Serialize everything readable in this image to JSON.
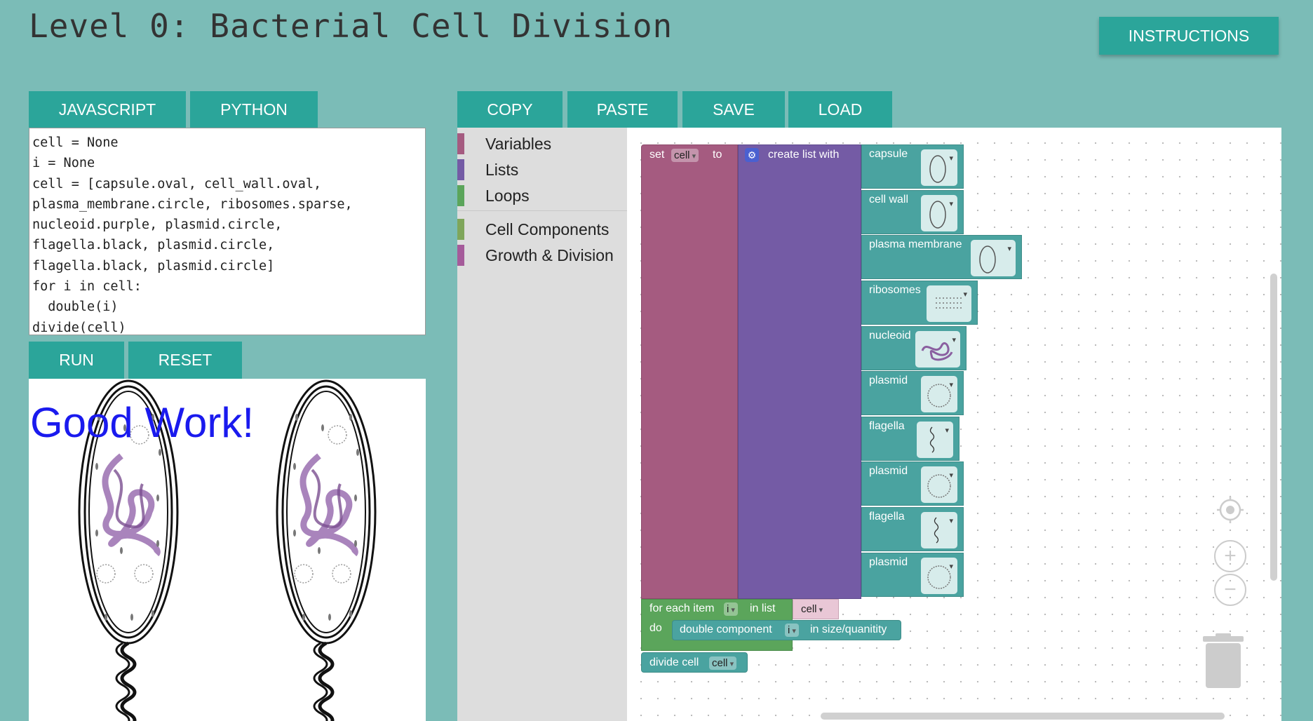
{
  "page": {
    "title": "Level 0: Bacterial Cell Division"
  },
  "header": {
    "instructions_label": "INSTRUCTIONS"
  },
  "language_tabs": {
    "javascript": "JAVASCRIPT",
    "python": "PYTHON"
  },
  "code": {
    "lines": [
      "cell = None",
      "i = None",
      "cell = [capsule.oval, cell_wall.oval,",
      "plasma_membrane.circle, ribosomes.sparse,",
      "nucleoid.purple, plasmid.circle,",
      "flagella.black, plasmid.circle,",
      "flagella.black, plasmid.circle]",
      "for i in cell:",
      "  double(i)",
      "divide(cell)"
    ]
  },
  "controls": {
    "run": "RUN",
    "reset": "RESET"
  },
  "output": {
    "message": "Good Work!"
  },
  "workspace_toolbar": {
    "copy": "COPY",
    "paste": "PASTE",
    "save": "SAVE",
    "load": "LOAD"
  },
  "toolbox": {
    "categories": [
      {
        "label": "Variables",
        "color": "#a55b80"
      },
      {
        "label": "Lists",
        "color": "#745ba5"
      },
      {
        "label": "Loops",
        "color": "#5ba55b"
      },
      {
        "label": "Cell Components",
        "color": "#7fa65b"
      },
      {
        "label": "Growth & Division",
        "color": "#a55b9a"
      }
    ]
  },
  "blocks": {
    "set": {
      "set": "set",
      "var": "cell",
      "to": "to"
    },
    "list": {
      "label": "create list with"
    },
    "components": [
      {
        "label": "capsule",
        "icon": "oval-icon"
      },
      {
        "label": "cell wall",
        "icon": "oval-icon"
      },
      {
        "label": "plasma membrane",
        "icon": "oval-icon"
      },
      {
        "label": "ribosomes",
        "icon": "dots-icon"
      },
      {
        "label": "nucleoid",
        "icon": "nucleoid-icon"
      },
      {
        "label": "plasmid",
        "icon": "circle-icon"
      },
      {
        "label": "flagella",
        "icon": "wave-icon"
      },
      {
        "label": "plasmid",
        "icon": "circle-icon"
      },
      {
        "label": "flagella",
        "icon": "wave-icon"
      },
      {
        "label": "plasmid",
        "icon": "circle-icon"
      }
    ],
    "foreach": {
      "label": "for each item",
      "var": "i",
      "in_list": "in list",
      "list_var": "cell",
      "do": "do"
    },
    "double": {
      "label": "double component",
      "var": "i",
      "suffix": "in size/quanitity"
    },
    "divide": {
      "label": "divide cell",
      "var": "cell"
    }
  },
  "colors": {
    "background": "#7bbcb7",
    "button": "#2ba59a",
    "variables_block": "#a55b80",
    "lists_block": "#745ba5",
    "loops_block": "#5ba55b",
    "component_block": "#4aa3a0"
  }
}
